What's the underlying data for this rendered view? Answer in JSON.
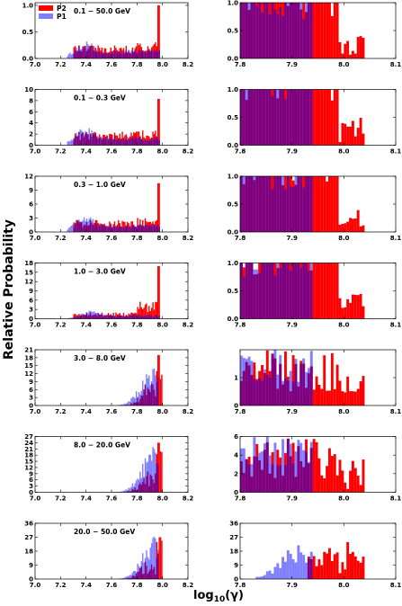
{
  "figure": {
    "ylabel": "Relative Probability",
    "xlabel_text": "log",
    "xlabel_sub": "10",
    "xlabel_arg": "(γ)"
  },
  "colors": {
    "P2": "#ff0000",
    "P1": "#7f7fff",
    "overlap": "#7f007f"
  },
  "legend": {
    "entries": [
      "P2",
      "P1"
    ],
    "placement": "top-left of first panel"
  },
  "chart_data": [
    {
      "type": "bar",
      "panel": "left",
      "row": 0,
      "range_label": "0.1 − 50.0 GeV",
      "xlim": [
        7.0,
        8.2
      ],
      "xticks": [
        "7.0",
        "7.2",
        "7.4",
        "7.6",
        "7.8",
        "8.0",
        "8.2"
      ],
      "ylim": [
        0,
        1.05
      ],
      "yticks": [
        "0.0",
        "0.5",
        "1.0"
      ],
      "p1_peak": {
        "x": 7.4,
        "y": 0.3
      },
      "p2_peak": {
        "x": 7.97,
        "y": 1.0
      }
    },
    {
      "type": "bar",
      "panel": "right",
      "row": 0,
      "xlim": [
        7.8,
        8.1
      ],
      "xticks": [
        "7.8",
        "7.9",
        "8.0",
        "8.1"
      ],
      "ylim": [
        0,
        1.0
      ],
      "yticks": [
        "0.0",
        "0.5",
        "1.0"
      ],
      "p1_end": 7.94,
      "p2_end": 8.04
    },
    {
      "type": "bar",
      "panel": "left",
      "row": 1,
      "range_label": "0.1 − 0.3 GeV",
      "xlim": [
        7.0,
        8.2
      ],
      "xticks": [
        "7.0",
        "7.2",
        "7.4",
        "7.6",
        "7.8",
        "8.0",
        "8.2"
      ],
      "ylim": [
        0,
        10
      ],
      "yticks": [
        "0",
        "2",
        "4",
        "6",
        "8",
        "10"
      ],
      "p1_peak": {
        "x": 7.4,
        "y": 3.0
      },
      "p2_peak": {
        "x": 7.97,
        "y": 8.3
      }
    },
    {
      "type": "bar",
      "panel": "right",
      "row": 1,
      "xlim": [
        7.8,
        8.1
      ],
      "xticks": [
        "7.8",
        "7.9",
        "8.0",
        "8.1"
      ],
      "ylim": [
        0,
        1.0
      ],
      "yticks": [
        "0.0",
        "0.5",
        "1.0"
      ],
      "p1_end": 7.94,
      "p2_end": 8.04
    },
    {
      "type": "bar",
      "panel": "left",
      "row": 2,
      "range_label": "0.3 − 1.0 GeV",
      "xlim": [
        7.0,
        8.2
      ],
      "xticks": [
        "7.0",
        "7.2",
        "7.4",
        "7.6",
        "7.8",
        "8.0",
        "8.2"
      ],
      "ylim": [
        0,
        12
      ],
      "yticks": [
        "0",
        "3",
        "6",
        "9",
        "12"
      ],
      "p1_peak": {
        "x": 7.4,
        "y": 3.2
      },
      "p2_peak": {
        "x": 7.97,
        "y": 10.5
      }
    },
    {
      "type": "bar",
      "panel": "right",
      "row": 2,
      "xlim": [
        7.8,
        8.1
      ],
      "xticks": [
        "7.8",
        "7.9",
        "8.0",
        "8.1"
      ],
      "ylim": [
        0,
        1.0
      ],
      "yticks": [
        "0.0",
        "0.5",
        "1.0"
      ],
      "p1_end": 7.94,
      "p2_end": 8.04
    },
    {
      "type": "bar",
      "panel": "left",
      "row": 3,
      "range_label": "1.0 − 3.0 GeV",
      "xlim": [
        7.0,
        8.2
      ],
      "xticks": [
        "7.0",
        "7.2",
        "7.4",
        "7.6",
        "7.8",
        "8.0",
        "8.2"
      ],
      "ylim": [
        0,
        18
      ],
      "yticks": [
        "0",
        "3",
        "6",
        "9",
        "12",
        "15",
        "18"
      ],
      "p1_peak": {
        "x": 7.45,
        "y": 2.5
      },
      "p2_peak": {
        "x": 7.97,
        "y": 17.0
      }
    },
    {
      "type": "bar",
      "panel": "right",
      "row": 3,
      "xlim": [
        7.8,
        8.1
      ],
      "xticks": [
        "7.8",
        "7.9",
        "8.0",
        "8.1"
      ],
      "ylim": [
        0,
        1.0
      ],
      "yticks": [
        "0.0",
        "0.5",
        "1.0"
      ],
      "p1_end": 7.94,
      "p2_end": 8.04
    },
    {
      "type": "bar",
      "panel": "left",
      "row": 4,
      "range_label": "3.0 − 8.0 GeV",
      "xlim": [
        7.0,
        8.2
      ],
      "xticks": [
        "7.0",
        "7.2",
        "7.4",
        "7.6",
        "7.8",
        "8.0",
        "8.2"
      ],
      "ylim": [
        0,
        21
      ],
      "yticks": [
        "0",
        "3",
        "6",
        "9",
        "12",
        "15",
        "18",
        "21"
      ],
      "p1_peak": {
        "x": 7.94,
        "y": 15.0
      },
      "p2_peak": {
        "x": 7.97,
        "y": 19.0
      }
    },
    {
      "type": "bar",
      "panel": "right",
      "row": 4,
      "xlim": [
        7.8,
        8.1
      ],
      "xticks": [
        "7.8",
        "7.9",
        "8.0",
        "8.1"
      ],
      "ylim": [
        0,
        2.0
      ],
      "yticks": [
        "0",
        "1"
      ],
      "p1_end": 7.94,
      "p2_end": 8.04
    },
    {
      "type": "bar",
      "panel": "left",
      "row": 5,
      "range_label": "8.0 − 20.0 GeV",
      "xlim": [
        7.0,
        8.2
      ],
      "xticks": [
        "7.0",
        "7.2",
        "7.4",
        "7.6",
        "7.8",
        "8.0",
        "8.2"
      ],
      "ylim": [
        0,
        27
      ],
      "yticks": [
        "0",
        "3",
        "6",
        "9",
        "12",
        "15",
        "18",
        "21",
        "24",
        "27"
      ],
      "p1_peak": {
        "x": 7.92,
        "y": 20.0
      },
      "p2_peak": {
        "x": 7.97,
        "y": 24.0
      }
    },
    {
      "type": "bar",
      "panel": "right",
      "row": 5,
      "xlim": [
        7.8,
        8.1
      ],
      "xticks": [
        "7.8",
        "7.9",
        "8.0",
        "8.1"
      ],
      "ylim": [
        0,
        6
      ],
      "yticks": [
        "0",
        "2",
        "4",
        "6"
      ],
      "p1_end": 7.94,
      "p2_end": 8.04
    },
    {
      "type": "bar",
      "panel": "left",
      "row": 6,
      "range_label": "20.0 − 50.0 GeV",
      "xlim": [
        7.0,
        8.2
      ],
      "xticks": [
        "7.0",
        "7.2",
        "7.4",
        "7.6",
        "7.8",
        "8.0",
        "8.2"
      ],
      "ylim": [
        0,
        36
      ],
      "yticks": [
        "0",
        "9",
        "18",
        "27",
        "36"
      ],
      "p1_peak": {
        "x": 7.93,
        "y": 25.0
      },
      "p2_peak": {
        "x": 7.98,
        "y": 27.0
      }
    },
    {
      "type": "bar",
      "panel": "right",
      "row": 6,
      "xlim": [
        7.8,
        8.1
      ],
      "xticks": [
        "7.8",
        "7.9",
        "8.0",
        "8.1"
      ],
      "ylim": [
        0,
        36
      ],
      "yticks": [
        "0",
        "9",
        "18",
        "27",
        "36"
      ],
      "p1_end": 7.94,
      "p2_end": 8.04
    }
  ]
}
